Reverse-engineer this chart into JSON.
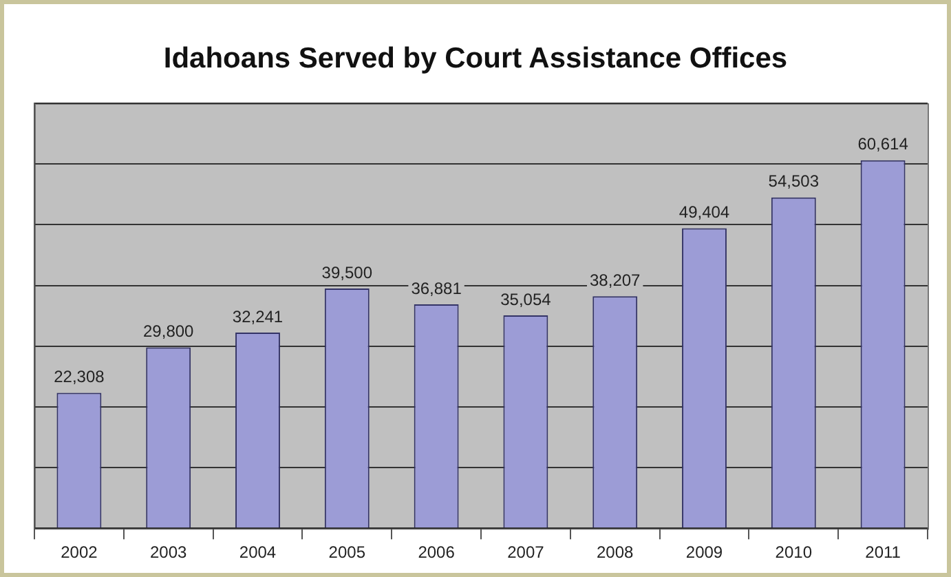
{
  "chart_data": {
    "type": "bar",
    "title": "Idahoans Served by Court Assistance Offices",
    "categories": [
      "2002",
      "2003",
      "2004",
      "2005",
      "2006",
      "2007",
      "2008",
      "2009",
      "2010",
      "2011"
    ],
    "values": [
      22308,
      29800,
      32241,
      39500,
      36881,
      35054,
      38207,
      49404,
      54503,
      60614
    ],
    "color": "#9c9cd6",
    "value_labels": [
      "22,308",
      "29,800",
      "32,241",
      "39,500",
      "36,881",
      "35,054",
      "38,207",
      "49,404",
      "54,503",
      "60,614"
    ],
    "grid": "y",
    "legend": false
  }
}
